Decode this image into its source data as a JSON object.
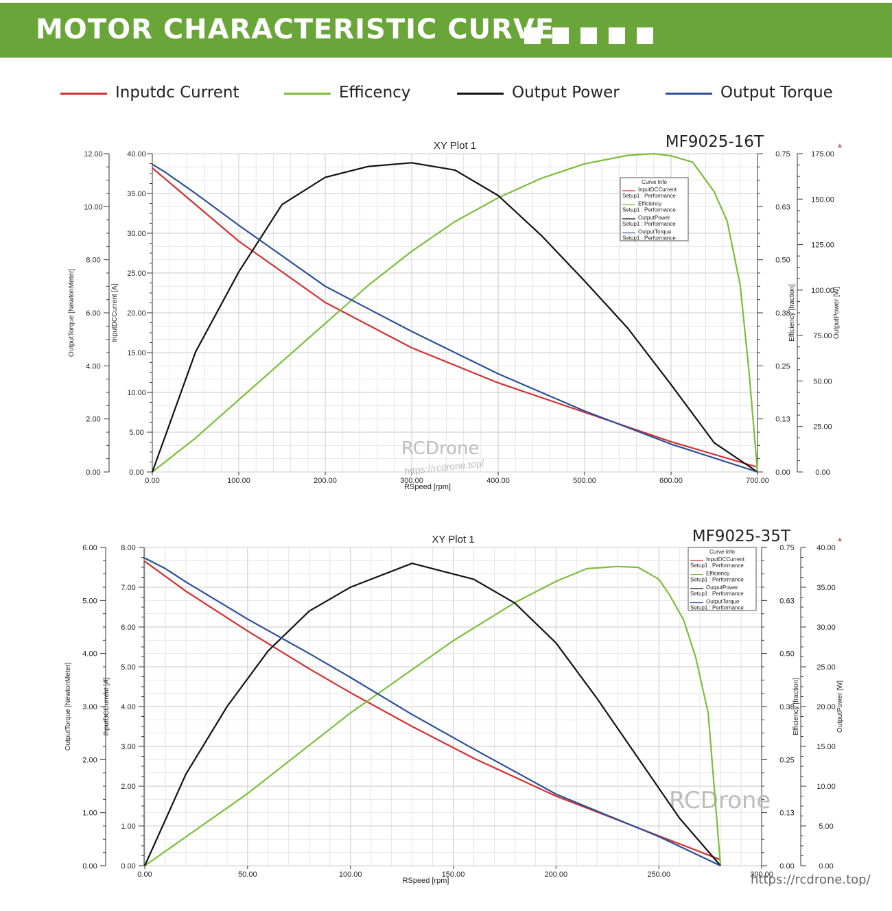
{
  "banner": {
    "title": "MOTOR CHARACTERISTIC CURVE",
    "squares": 5
  },
  "legend": [
    {
      "label": "Inputdc Current",
      "color": "#d32f2f"
    },
    {
      "label": "Efficency",
      "color": "#7cbd3a"
    },
    {
      "label": "Output Power",
      "color": "#111111"
    },
    {
      "label": "Output Torque",
      "color": "#2b4f9a"
    }
  ],
  "footer": {
    "url": "https://rcdrone.top/"
  },
  "chart_data": [
    {
      "type": "line",
      "title": "XY Plot 1",
      "model": "MF9025-16T",
      "watermark": "RCDrone",
      "watermark_url": "https://rcdrone.top/",
      "xlabel": "RSpeed [rpm]",
      "xlim": [
        0,
        700
      ],
      "xticks": [
        "0.00",
        "100.00",
        "200.00",
        "300.00",
        "400.00",
        "500.00",
        "600.00",
        "700.00"
      ],
      "axes": {
        "torque": {
          "label": "OutputTorque [NewtonMeter]",
          "range": [
            0,
            12
          ],
          "ticks": [
            "0.00",
            "2.00",
            "4.00",
            "6.00",
            "8.00",
            "10.00",
            "12.00"
          ]
        },
        "current": {
          "label": "InputDCCurrent [A]",
          "range": [
            0,
            40
          ],
          "ticks": [
            "0.00",
            "5.00",
            "10.00",
            "15.00",
            "20.00",
            "25.00",
            "30.00",
            "35.00",
            "40.00"
          ]
        },
        "efficiency": {
          "label": "Efficiency [fraction]",
          "range": [
            0,
            0.75
          ],
          "ticks": [
            "0.00",
            "0.13",
            "0.25",
            "0.38",
            "0.50",
            "0.63",
            "0.75"
          ]
        },
        "power": {
          "label": "OutputPower [W]",
          "range": [
            0,
            175
          ],
          "ticks": [
            "0.00",
            "25.00",
            "50.00",
            "75.00",
            "100.00",
            "125.00",
            "150.00",
            "175.00"
          ]
        }
      },
      "curve_info": {
        "title": "Curve Info",
        "entries": [
          {
            "name": "InputDCCurrent",
            "setup": "Setup1 : Performance"
          },
          {
            "name": "Efficiency",
            "setup": "Setup1 : Performance"
          },
          {
            "name": "OutputPower",
            "setup": "Setup1 : Performance"
          },
          {
            "name": "OutputTorque",
            "setup": "Setup1 : Performance"
          }
        ]
      },
      "series": [
        {
          "name": "InputDCCurrent",
          "axis": "current",
          "color": "#d32f2f",
          "x": [
            0,
            100,
            200,
            300,
            400,
            500,
            600,
            700
          ],
          "y": [
            38.2,
            29.0,
            21.3,
            15.6,
            11.2,
            7.5,
            3.8,
            0.6
          ]
        },
        {
          "name": "Efficiency",
          "axis": "efficiency",
          "color": "#7cbd3a",
          "x": [
            0,
            50,
            100,
            150,
            200,
            250,
            300,
            350,
            400,
            450,
            500,
            550,
            580,
            600,
            625,
            650,
            665,
            680,
            690,
            700
          ],
          "y": [
            0,
            0.08,
            0.17,
            0.26,
            0.35,
            0.44,
            0.52,
            0.59,
            0.646,
            0.692,
            0.726,
            0.746,
            0.75,
            0.745,
            0.73,
            0.66,
            0.59,
            0.44,
            0.24,
            0
          ]
        },
        {
          "name": "OutputPower",
          "axis": "power",
          "color": "#111111",
          "x": [
            0,
            50,
            100,
            150,
            200,
            250,
            300,
            350,
            400,
            450,
            500,
            550,
            600,
            650,
            700
          ],
          "y": [
            0,
            66,
            110,
            147,
            162,
            168,
            170,
            166,
            152,
            130,
            105,
            79,
            48,
            16,
            0
          ]
        },
        {
          "name": "OutputTorque",
          "axis": "torque",
          "color": "#2b4f9a",
          "x": [
            0,
            15,
            50,
            100,
            200,
            300,
            400,
            500,
            600,
            700
          ],
          "y": [
            11.6,
            11.3,
            10.5,
            9.3,
            7.0,
            5.3,
            3.7,
            2.3,
            1.05,
            0.0
          ]
        }
      ]
    },
    {
      "type": "line",
      "title": "XY Plot 1",
      "model": "MF9025-35T",
      "watermark": "RCDrone",
      "xlabel": "RSpeed [rpm]",
      "xlim": [
        0,
        300
      ],
      "xticks": [
        "0.00",
        "50.00",
        "100.00",
        "150.00",
        "200.00",
        "250.00",
        "300.00"
      ],
      "axes": {
        "torque": {
          "label": "OutputTorque [NewtonMeter]",
          "range": [
            0,
            6
          ],
          "ticks": [
            "0.00",
            "1.00",
            "2.00",
            "3.00",
            "4.00",
            "5.00",
            "6.00"
          ]
        },
        "current": {
          "label": "InputDCCurrent [A]",
          "range": [
            0,
            8
          ],
          "ticks": [
            "0.00",
            "1.00",
            "2.00",
            "3.00",
            "4.00",
            "5.00",
            "6.00",
            "7.00",
            "8.00"
          ]
        },
        "efficiency": {
          "label": "Efficiency [fraction]",
          "range": [
            0,
            0.75
          ],
          "ticks": [
            "0.00",
            "0.13",
            "0.25",
            "0.38",
            "0.50",
            "0.63",
            "0.75"
          ]
        },
        "power": {
          "label": "OutputPower [W]",
          "range": [
            0,
            40
          ],
          "ticks": [
            "0.00",
            "5.00",
            "10.00",
            "15.00",
            "20.00",
            "25.00",
            "30.00",
            "35.00",
            "40.00"
          ]
        }
      },
      "curve_info": {
        "title": "Curve Info",
        "entries": [
          {
            "name": "InputDCCurrent",
            "setup": "Setup1 : Performance"
          },
          {
            "name": "Efficiency",
            "setup": "Setup1 : Performance"
          },
          {
            "name": "OutputPower",
            "setup": "Setup1 : Performance"
          },
          {
            "name": "OutputTorque",
            "setup": "Setup1 : Performance"
          }
        ]
      },
      "series": [
        {
          "name": "InputDCCurrent",
          "axis": "current",
          "color": "#d32f2f",
          "x": [
            0,
            20,
            50,
            80,
            100,
            130,
            160,
            200,
            250,
            280
          ],
          "y": [
            7.65,
            6.9,
            5.9,
            4.95,
            4.35,
            3.5,
            2.7,
            1.75,
            0.75,
            0.15
          ]
        },
        {
          "name": "Efficiency",
          "axis": "efficiency",
          "color": "#7cbd3a",
          "x": [
            0,
            50,
            100,
            150,
            180,
            200,
            215,
            230,
            240,
            250,
            255,
            262,
            268,
            274,
            280
          ],
          "y": [
            0,
            0.17,
            0.36,
            0.53,
            0.62,
            0.67,
            0.7,
            0.705,
            0.703,
            0.675,
            0.64,
            0.58,
            0.49,
            0.36,
            0
          ]
        },
        {
          "name": "OutputPower",
          "axis": "power",
          "color": "#111111",
          "x": [
            0,
            20,
            40,
            60,
            80,
            100,
            130,
            160,
            180,
            200,
            220,
            240,
            260,
            280
          ],
          "y": [
            0,
            11.5,
            20,
            27,
            32,
            35,
            38,
            36,
            33,
            28,
            21,
            13.5,
            6,
            0
          ]
        },
        {
          "name": "OutputTorque",
          "axis": "torque",
          "color": "#2b4f9a",
          "x": [
            0,
            10,
            20,
            50,
            80,
            100,
            130,
            160,
            200,
            250,
            280
          ],
          "y": [
            5.8,
            5.6,
            5.35,
            4.65,
            4.0,
            3.55,
            2.85,
            2.2,
            1.35,
            0.55,
            0.0
          ]
        }
      ]
    }
  ]
}
